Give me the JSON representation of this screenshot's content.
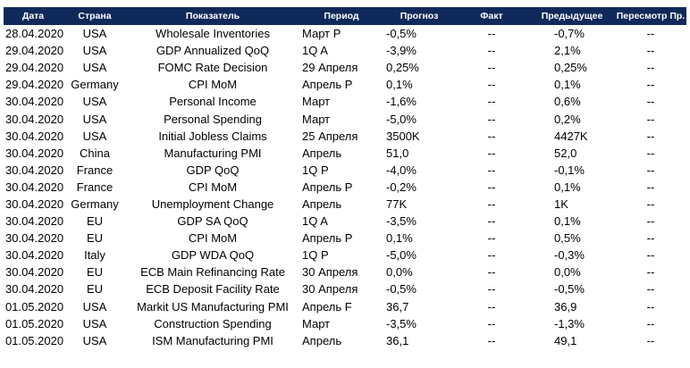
{
  "table": {
    "headers": {
      "date": "Дата",
      "country": "Страна",
      "indicator": "Показатель",
      "period": "Период",
      "forecast": "Прогноз",
      "fact": "Факт",
      "previous": "Предыдущее",
      "revision": "Пересмотр Пр."
    },
    "rows": [
      {
        "date": "28.04.2020",
        "country": "USA",
        "indicator": "Wholesale Inventories",
        "period": "Март P",
        "forecast": "-0,5%",
        "fact": "--",
        "previous": "-0,7%",
        "revision": "--"
      },
      {
        "date": "29.04.2020",
        "country": "USA",
        "indicator": "GDP Annualized QoQ",
        "period": "1Q A",
        "forecast": "-3,9%",
        "fact": "--",
        "previous": "2,1%",
        "revision": "--"
      },
      {
        "date": "29.04.2020",
        "country": "USA",
        "indicator": "FOMC Rate Decision",
        "period": "29 Апреля",
        "forecast": "0,25%",
        "fact": "--",
        "previous": "0,25%",
        "revision": "--"
      },
      {
        "date": "29.04.2020",
        "country": "Germany",
        "indicator": "CPI MoM",
        "period": "Апрель P",
        "forecast": "0,1%",
        "fact": "--",
        "previous": "0,1%",
        "revision": "--"
      },
      {
        "date": "30.04.2020",
        "country": "USA",
        "indicator": "Personal Income",
        "period": "Март",
        "forecast": "-1,6%",
        "fact": "--",
        "previous": "0,6%",
        "revision": "--"
      },
      {
        "date": "30.04.2020",
        "country": "USA",
        "indicator": "Personal Spending",
        "period": "Март",
        "forecast": "-5,0%",
        "fact": "--",
        "previous": "0,2%",
        "revision": "--"
      },
      {
        "date": "30.04.2020",
        "country": "USA",
        "indicator": "Initial Jobless Claims",
        "period": "25 Апреля",
        "forecast": "3500K",
        "fact": "--",
        "previous": "4427K",
        "revision": "--"
      },
      {
        "date": "30.04.2020",
        "country": "China",
        "indicator": "Manufacturing PMI",
        "period": "Апрель",
        "forecast": "51,0",
        "fact": "--",
        "previous": "52,0",
        "revision": "--"
      },
      {
        "date": "30.04.2020",
        "country": "France",
        "indicator": "GDP QoQ",
        "period": "1Q P",
        "forecast": "-4,0%",
        "fact": "--",
        "previous": "-0,1%",
        "revision": "--"
      },
      {
        "date": "30.04.2020",
        "country": "France",
        "indicator": "CPI MoM",
        "period": "Апрель P",
        "forecast": "-0,2%",
        "fact": "--",
        "previous": "0,1%",
        "revision": "--"
      },
      {
        "date": "30.04.2020",
        "country": "Germany",
        "indicator": "Unemployment Change",
        "period": "Апрель",
        "forecast": "77K",
        "fact": "--",
        "previous": "1K",
        "revision": "--"
      },
      {
        "date": "30.04.2020",
        "country": "EU",
        "indicator": "GDP SA QoQ",
        "period": "1Q A",
        "forecast": "-3,5%",
        "fact": "--",
        "previous": "0,1%",
        "revision": "--"
      },
      {
        "date": "30.04.2020",
        "country": "EU",
        "indicator": "CPI MoM",
        "period": "Апрель P",
        "forecast": "0,1%",
        "fact": "--",
        "previous": "0,5%",
        "revision": "--"
      },
      {
        "date": "30.04.2020",
        "country": "Italy",
        "indicator": "GDP WDA QoQ",
        "period": "1Q P",
        "forecast": "-5,0%",
        "fact": "--",
        "previous": "-0,3%",
        "revision": "--"
      },
      {
        "date": "30.04.2020",
        "country": "EU",
        "indicator": "ECB Main Refinancing Rate",
        "period": "30 Апреля",
        "forecast": "0,0%",
        "fact": "--",
        "previous": "0,0%",
        "revision": "--"
      },
      {
        "date": "30.04.2020",
        "country": "EU",
        "indicator": "ECB Deposit Facility Rate",
        "period": "30 Апреля",
        "forecast": "-0,5%",
        "fact": "--",
        "previous": "-0,5%",
        "revision": "--"
      },
      {
        "date": "01.05.2020",
        "country": "USA",
        "indicator": "Markit US Manufacturing PMI",
        "period": "Апрель F",
        "forecast": "36,7",
        "fact": "--",
        "previous": "36,9",
        "revision": "--"
      },
      {
        "date": "01.05.2020",
        "country": "USA",
        "indicator": "Construction Spending",
        "period": "Март",
        "forecast": "-3,5%",
        "fact": "--",
        "previous": "-1,3%",
        "revision": "--"
      },
      {
        "date": "01.05.2020",
        "country": "USA",
        "indicator": "ISM Manufacturing PMI",
        "period": "Апрель",
        "forecast": "36,1",
        "fact": "--",
        "previous": "49,1",
        "revision": "--"
      }
    ]
  }
}
